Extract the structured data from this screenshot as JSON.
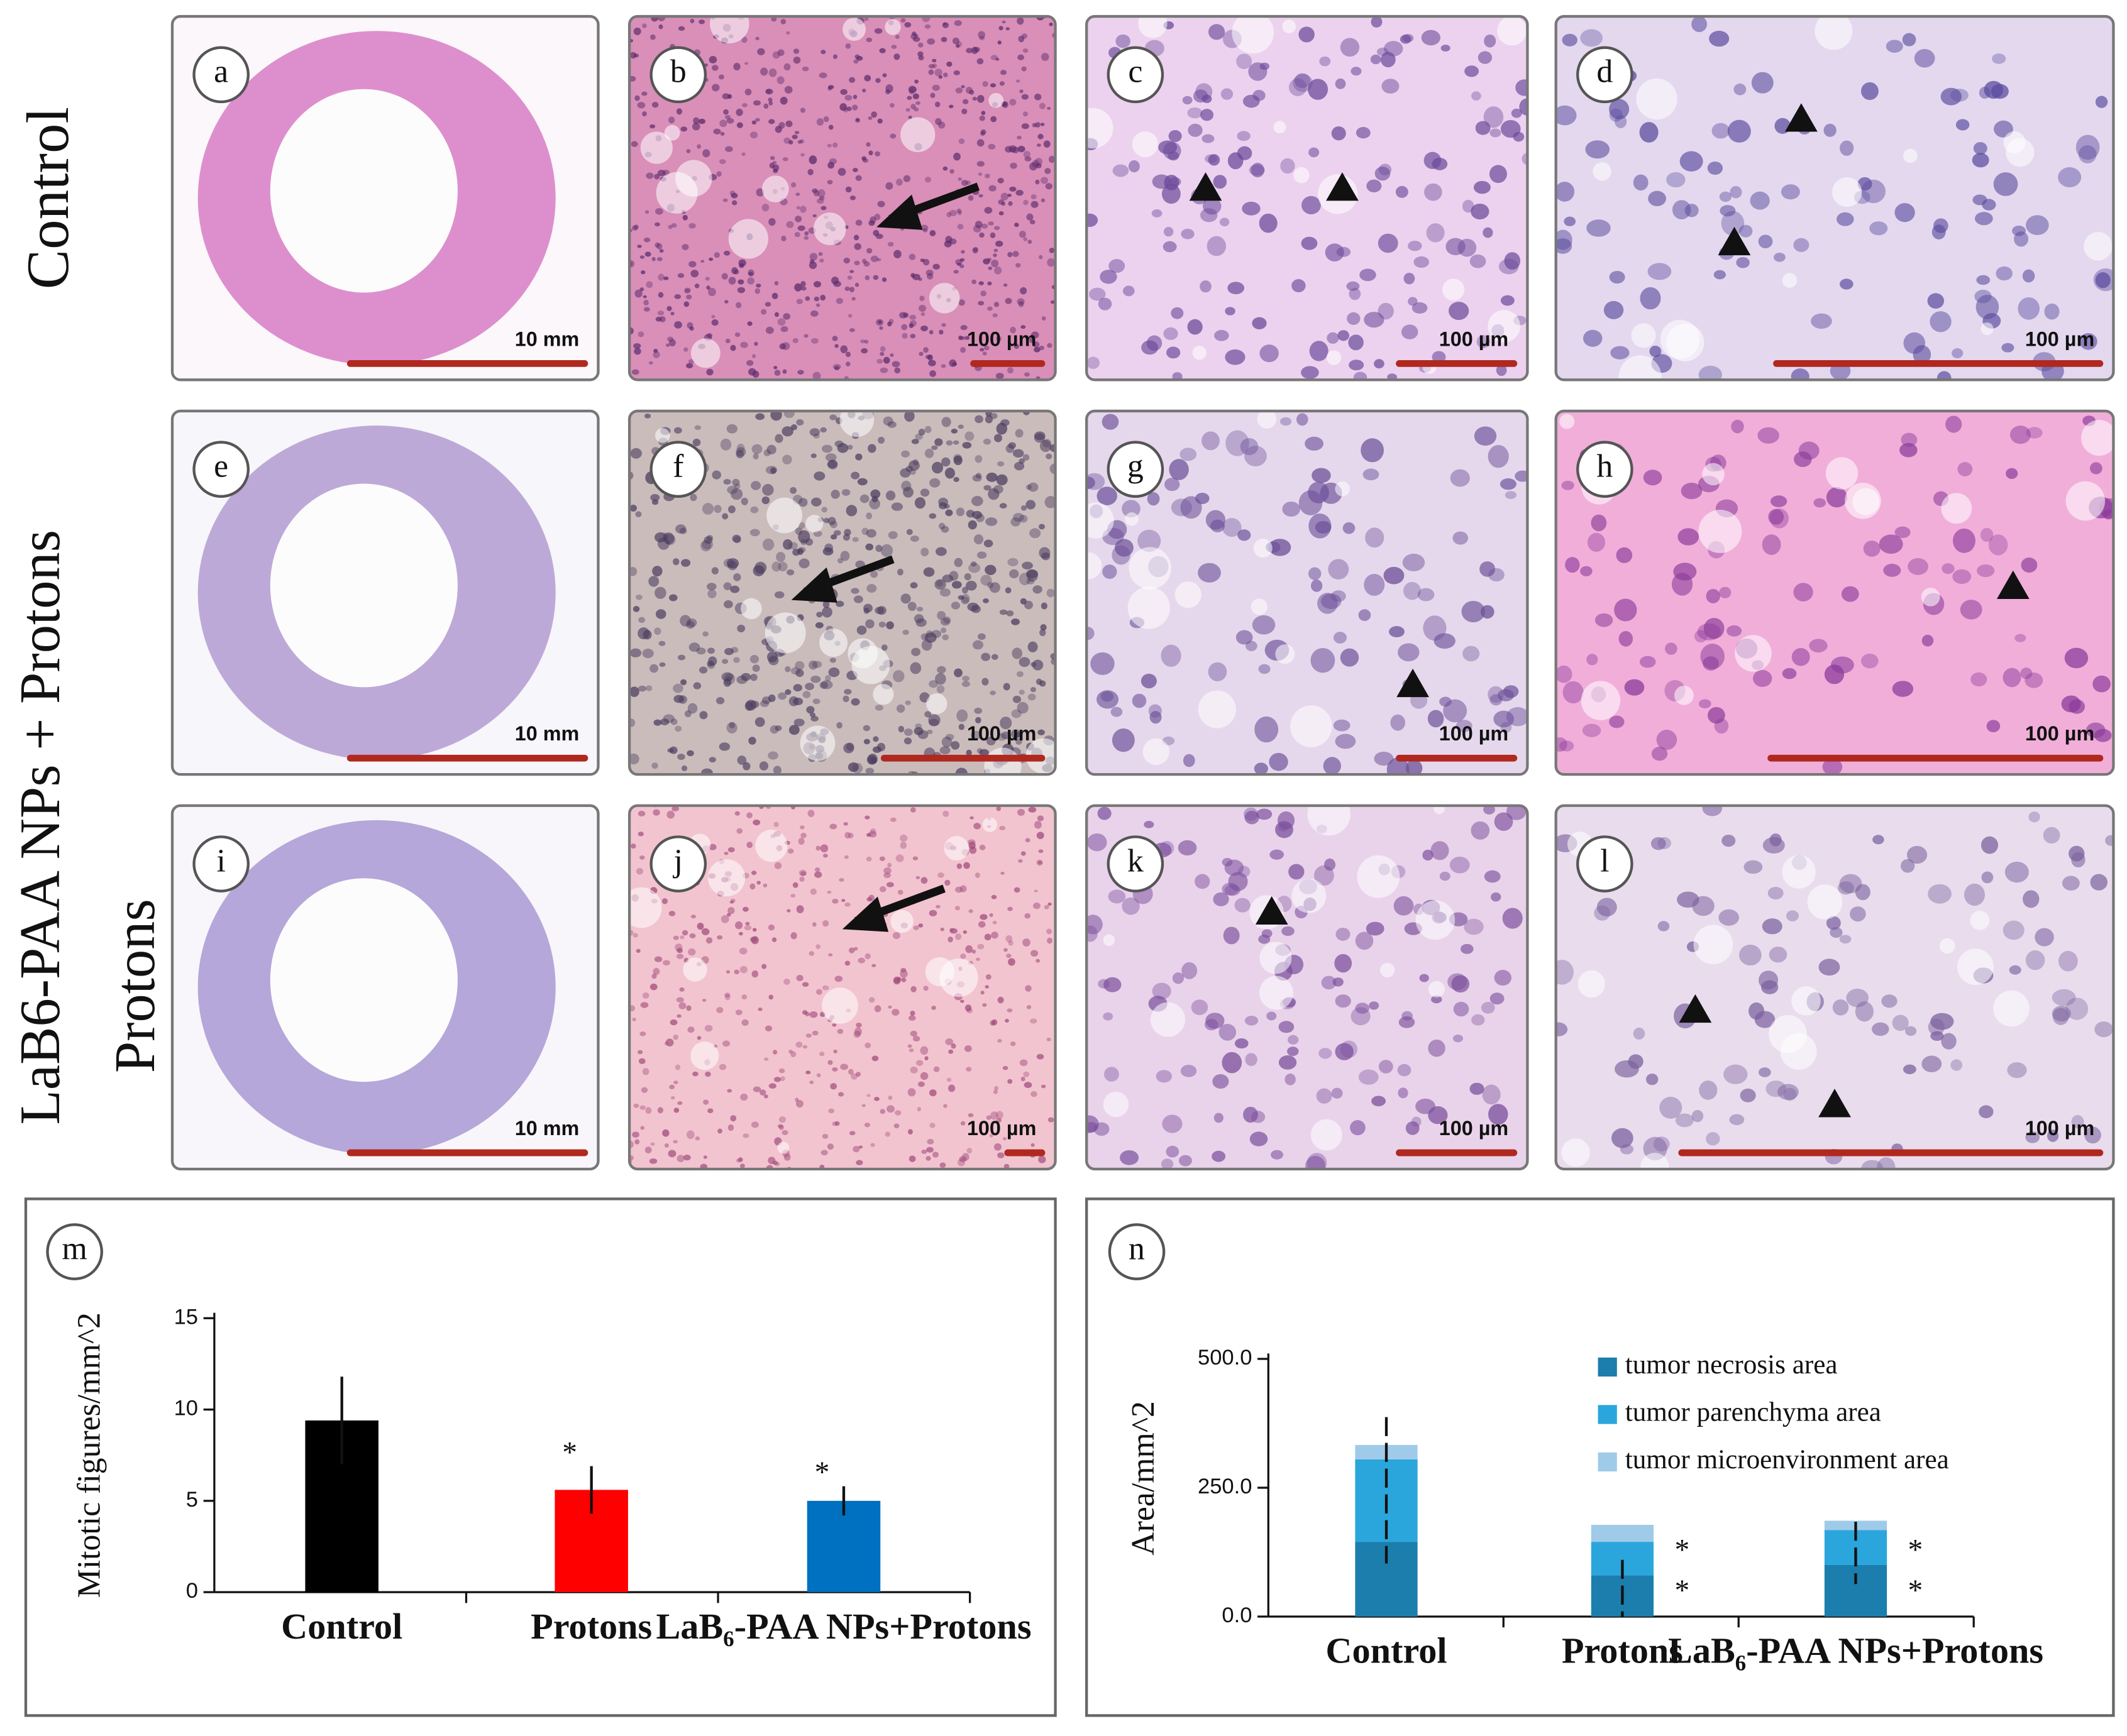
{
  "row_labels": [
    "Control",
    "LaB6-PAA NPs +  Protons",
    "Protons"
  ],
  "panels": [
    {
      "letter": "a",
      "scale": "10 mm"
    },
    {
      "letter": "b",
      "scale": "100 µm"
    },
    {
      "letter": "c",
      "scale": "100 µm"
    },
    {
      "letter": "d",
      "scale": "100 µm"
    },
    {
      "letter": "e",
      "scale": "10 mm"
    },
    {
      "letter": "f",
      "scale": "100 µm"
    },
    {
      "letter": "g",
      "scale": "100 µm"
    },
    {
      "letter": "h",
      "scale": "100 µm"
    },
    {
      "letter": "i",
      "scale": "10 mm"
    },
    {
      "letter": "j",
      "scale": "100 µm"
    },
    {
      "letter": "k",
      "scale": "100 µm"
    },
    {
      "letter": "l",
      "scale": "100 µm"
    }
  ],
  "chart_data": [
    {
      "type": "bar",
      "label": "m",
      "y_label": "Mitotic figures/mm^2",
      "categories": [
        "Control",
        "Protons",
        "LaB₆-PAA NPs+Protons"
      ],
      "values": [
        9.4,
        5.6,
        5.0
      ],
      "errors": [
        2.4,
        1.3,
        0.8
      ],
      "colors": [
        "#000000",
        "#ff0000",
        "#0070c0"
      ],
      "significance": [
        null,
        "*",
        "*"
      ],
      "ylim": [
        0,
        15
      ],
      "yticks": [
        0,
        5,
        10,
        15
      ]
    },
    {
      "type": "stacked_bar",
      "label": "n",
      "y_label": "Area/mm^2",
      "categories": [
        "Control",
        "Protons",
        "LaB₆-PAA NPs+Protons"
      ],
      "series": [
        {
          "name": "tumor necrosis area",
          "color": "#1b7ead",
          "values": [
            145,
            80,
            100
          ]
        },
        {
          "name": "tumor parenchyma area",
          "color": "#2aa6dc",
          "values": [
            160,
            65,
            68
          ]
        },
        {
          "name": "tumor microenvironment area",
          "color": "#9fcbe9",
          "values": [
            28,
            33,
            18
          ]
        }
      ],
      "error_low": [
        103,
        0,
        63
      ],
      "error_high": [
        387,
        110,
        184
      ],
      "significance": [
        null,
        [
          "*",
          "*"
        ],
        [
          "*",
          "*"
        ]
      ],
      "legend": "upper right",
      "ylim": [
        0,
        500
      ],
      "yticks": [
        {
          "value": 0,
          "label": "0.0"
        },
        {
          "value": 250,
          "label": "250.0"
        },
        {
          "value": 500,
          "label": "500.0"
        }
      ]
    }
  ]
}
